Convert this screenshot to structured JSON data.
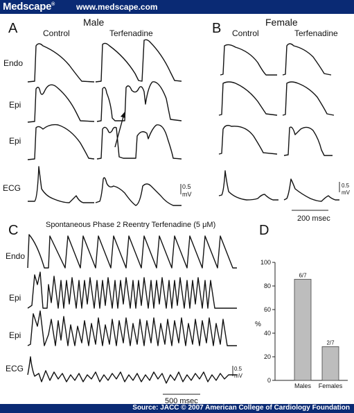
{
  "header": {
    "brand": "Medscape",
    "brand_mark": "®",
    "url": "www.medscape.com"
  },
  "footer": {
    "source": "Source: JACC © 2007 American College of Cardiology Foundation"
  },
  "panelA": {
    "letter": "A",
    "title": "Male",
    "col_control": "Control",
    "col_drug": "Terfenadine",
    "rows": [
      "Endo",
      "Epi",
      "Epi",
      "ECG"
    ],
    "scale_value": "0.5",
    "scale_unit": "mV"
  },
  "panelB": {
    "letter": "B",
    "title": "Female",
    "col_control": "Control",
    "col_drug": "Terfenadine",
    "scale_value": "0.5",
    "scale_unit": "mV",
    "time_scale": "200 msec"
  },
  "panelC": {
    "letter": "C",
    "title": "Spontaneous Phase 2 Reentry   Terfenadine (5 μM)",
    "rows": [
      "Endo",
      "Epi",
      "Epi",
      "ECG"
    ],
    "scale_value": "0.5",
    "scale_unit": "mV",
    "time_scale": "500 msec"
  },
  "chart_data": {
    "type": "bar",
    "panel": "D",
    "categories": [
      "Males",
      "Females"
    ],
    "values": [
      85.7,
      28.6
    ],
    "data_labels": [
      "6/7",
      "2/7"
    ],
    "ylabel": "%",
    "ylim": [
      0,
      100
    ],
    "yticks": [
      0,
      20,
      40,
      60,
      80,
      100
    ],
    "bar_color": "#bdbdbd"
  }
}
